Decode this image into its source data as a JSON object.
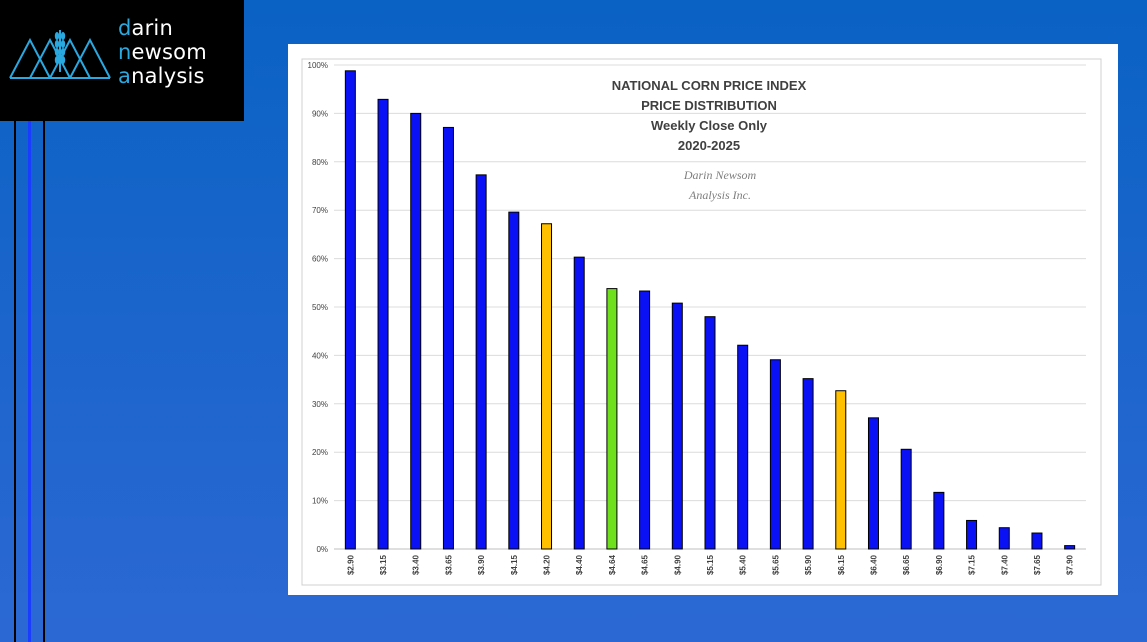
{
  "logo": {
    "line1_lead": "d",
    "line1_rest": "arin",
    "line2_lead": "n",
    "line2_rest": "ewsom",
    "line3_lead": "a",
    "line3_rest": "nalysis",
    "accent": "#2aa8e0"
  },
  "chart_data": {
    "type": "bar",
    "title_lines": [
      "NATIONAL CORN PRICE INDEX",
      "PRICE DISTRIBUTION",
      "Weekly Close Only",
      "2020-2025"
    ],
    "watermark_lines": [
      "Darin Newsom",
      "Analysis Inc."
    ],
    "categories": [
      "$2.90",
      "$3.15",
      "$3.40",
      "$3.65",
      "$3.90",
      "$4.15",
      "$4.20",
      "$4.40",
      "$4.64",
      "$4.65",
      "$4.90",
      "$5.15",
      "$5.40",
      "$5.65",
      "$5.90",
      "$6.15",
      "$6.40",
      "$6.65",
      "$6.90",
      "$7.15",
      "$7.40",
      "$7.65",
      "$7.90"
    ],
    "values": [
      98.8,
      92.9,
      90.0,
      87.1,
      77.3,
      69.6,
      67.2,
      60.3,
      53.8,
      53.3,
      50.8,
      48.0,
      42.1,
      39.1,
      35.2,
      32.7,
      27.1,
      20.6,
      11.7,
      5.9,
      4.4,
      3.3,
      0.7
    ],
    "colors": [
      "#0a12f5",
      "#0a12f5",
      "#0a12f5",
      "#0a12f5",
      "#0a12f5",
      "#0a12f5",
      "#ffc000",
      "#0a12f5",
      "#6fe01c",
      "#0a12f5",
      "#0a12f5",
      "#0a12f5",
      "#0a12f5",
      "#0a12f5",
      "#0a12f5",
      "#ffc000",
      "#0a12f5",
      "#0a12f5",
      "#0a12f5",
      "#0a12f5",
      "#0a12f5",
      "#0a12f5",
      "#0a12f5"
    ],
    "ylim": [
      0,
      100
    ],
    "yticks": [
      "0%",
      "10%",
      "20%",
      "30%",
      "40%",
      "50%",
      "60%",
      "70%",
      "80%",
      "90%",
      "100%"
    ],
    "grid": true
  }
}
